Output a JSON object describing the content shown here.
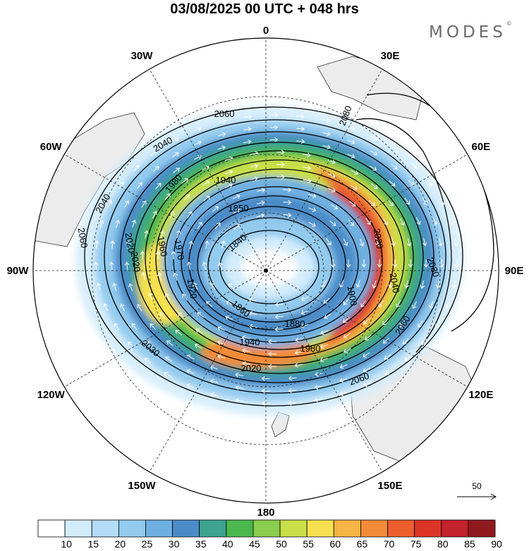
{
  "title": "03/08/2025  00 UTC  + 048 hrs",
  "brand": {
    "name": "MODES",
    "mark": "©"
  },
  "longitude_labels": [
    {
      "lon": 0,
      "text": "0"
    },
    {
      "lon": 30,
      "text": "30E"
    },
    {
      "lon": 60,
      "text": "60E"
    },
    {
      "lon": 90,
      "text": "90E"
    },
    {
      "lon": 120,
      "text": "120E"
    },
    {
      "lon": 150,
      "text": "150E"
    },
    {
      "lon": 180,
      "text": "180"
    },
    {
      "lon": -150,
      "text": "150W"
    },
    {
      "lon": -120,
      "text": "120W"
    },
    {
      "lon": -90,
      "text": "90W"
    },
    {
      "lon": -60,
      "text": "60W"
    },
    {
      "lon": -30,
      "text": "30W"
    }
  ],
  "contour_labels": [
    "2060",
    "2040",
    "2080",
    "2060",
    "2020",
    "2040",
    "2080",
    "1980",
    "1940",
    "1850",
    "1840",
    "1860",
    "1880",
    "1940",
    "1980",
    "2020",
    "2040",
    "2060",
    "2020",
    "2030",
    "2020",
    "1960",
    "1970",
    "1920",
    "2060",
    "1900"
  ],
  "legend": {
    "ticks": [
      "10",
      "15",
      "20",
      "25",
      "30",
      "35",
      "40",
      "45",
      "50",
      "55",
      "60",
      "65",
      "70",
      "75",
      "80",
      "85",
      "90"
    ],
    "colors": [
      "#ffffff",
      "#d3ecfb",
      "#b4ddf7",
      "#93cbef",
      "#6fb0e2",
      "#4b8cc8",
      "#3ea38f",
      "#4cb850",
      "#8acc4e",
      "#c8df4a",
      "#f5e050",
      "#f6b545",
      "#f38b38",
      "#ec5e2d",
      "#dc3527",
      "#c1222c",
      "#8f1a1e"
    ]
  },
  "reference_vector": {
    "label": "50"
  },
  "colors": {
    "land": "#ececec",
    "coast": "#333333",
    "contour": "#000000",
    "grid": "#222222"
  }
}
